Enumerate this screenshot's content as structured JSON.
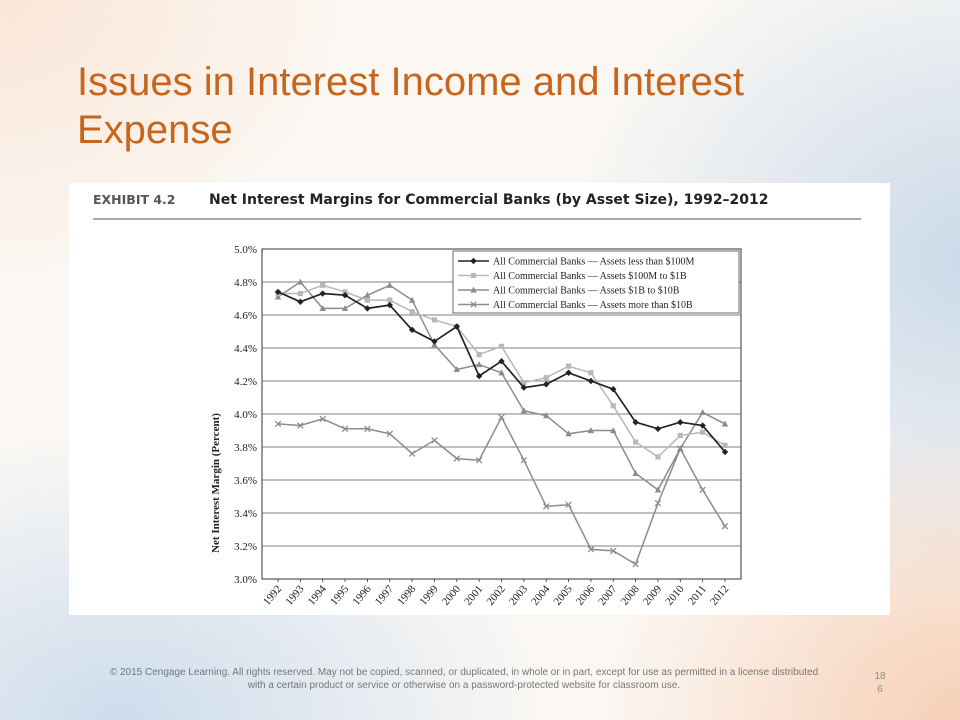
{
  "slide": {
    "title": "Issues in Interest Income and Interest Expense",
    "footer": "© 2015 Cengage Learning. All rights reserved. May not be copied, scanned, or duplicated, in whole or in part, except for use as permitted in a license distributed with a certain product or service or otherwise on a password-protected website for classroom use.",
    "page_number": "18\n6"
  },
  "exhibit": {
    "label": "EXHIBIT 4.2",
    "title": "Net Interest Margins for Commercial Banks (by Asset Size), 1992–2012"
  },
  "chart_data": {
    "type": "line",
    "ylabel": "Net Interest Margin (Percent)",
    "xlabel": "",
    "ylim": [
      3.0,
      5.0
    ],
    "yticks": [
      "5.0%",
      "4.8%",
      "4.6%",
      "4.4%",
      "4.2%",
      "4.0%",
      "3.8%",
      "3.6%",
      "3.4%",
      "3.2%",
      "3.0%"
    ],
    "x": [
      "1992",
      "1993",
      "1994",
      "1995",
      "1996",
      "1997",
      "1998",
      "1999",
      "2000",
      "2001",
      "2002",
      "2003",
      "2004",
      "2005",
      "2006",
      "2007",
      "2008",
      "2009",
      "2010",
      "2011",
      "2012"
    ],
    "grid": true,
    "legend_position": "top-right",
    "series": [
      {
        "name": "All Commercial Banks — Assets less than $100M",
        "color": "#222222",
        "marker": "diamond",
        "values": [
          4.74,
          4.68,
          4.73,
          4.72,
          4.64,
          4.66,
          4.51,
          4.44,
          4.53,
          4.23,
          4.32,
          4.16,
          4.18,
          4.25,
          4.2,
          4.15,
          3.95,
          3.91,
          3.95,
          3.93,
          3.77
        ]
      },
      {
        "name": "All Commercial Banks — Assets $100M to $1B",
        "color": "#b8b8b8",
        "marker": "square",
        "values": [
          4.73,
          4.73,
          4.78,
          4.74,
          4.69,
          4.69,
          4.62,
          4.57,
          4.53,
          4.36,
          4.41,
          4.19,
          4.22,
          4.29,
          4.25,
          4.05,
          3.83,
          3.74,
          3.87,
          3.89,
          3.81
        ]
      },
      {
        "name": "All Commercial Banks — Assets $1B to $10B",
        "color": "#8c8c8c",
        "marker": "triangle",
        "values": [
          4.71,
          4.8,
          4.64,
          4.64,
          4.72,
          4.78,
          4.69,
          4.42,
          4.27,
          4.3,
          4.25,
          4.02,
          3.99,
          3.88,
          3.9,
          3.9,
          3.64,
          3.54,
          3.79,
          4.01,
          3.94
        ]
      },
      {
        "name": "All Commercial Banks — Assets more than $10B",
        "color": "#8c8c8c",
        "marker": "x",
        "values": [
          3.94,
          3.93,
          3.97,
          3.91,
          3.91,
          3.88,
          3.76,
          3.84,
          3.73,
          3.72,
          3.98,
          3.72,
          3.44,
          3.45,
          3.18,
          3.17,
          3.09,
          3.46,
          3.79,
          3.54,
          3.32
        ]
      }
    ]
  }
}
